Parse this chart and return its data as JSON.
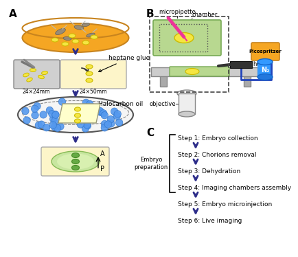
{
  "title": "",
  "bg_color": "#ffffff",
  "arrow_color": "#2d2d8a",
  "label_A": "A",
  "label_B": "B",
  "label_C": "C",
  "section_C_steps": [
    "Step 1: Embryo collection",
    "Step 2: Chorions removal",
    "Step 3: Dehydration",
    "Step 4: Imaging chambers assembly",
    "Step 5: Embryo microinjection",
    "Step 6: Live imaging"
  ],
  "embryo_prep_label": "Embryo\npreparation",
  "heptane_glue_label": "heptane glue",
  "halocarbon_oil_label": "Halocarbon oil",
  "size_24x24": "24×24mm",
  "size_24x50": "24×50mm",
  "micropipette_label": "micropipette",
  "chamber_label": "chamber",
  "holder_label": "holder",
  "objective_label": "objective",
  "picospritzer_label": "Picospritzer",
  "n2_label": "N₂",
  "A_label": "A",
  "P_label": "P"
}
